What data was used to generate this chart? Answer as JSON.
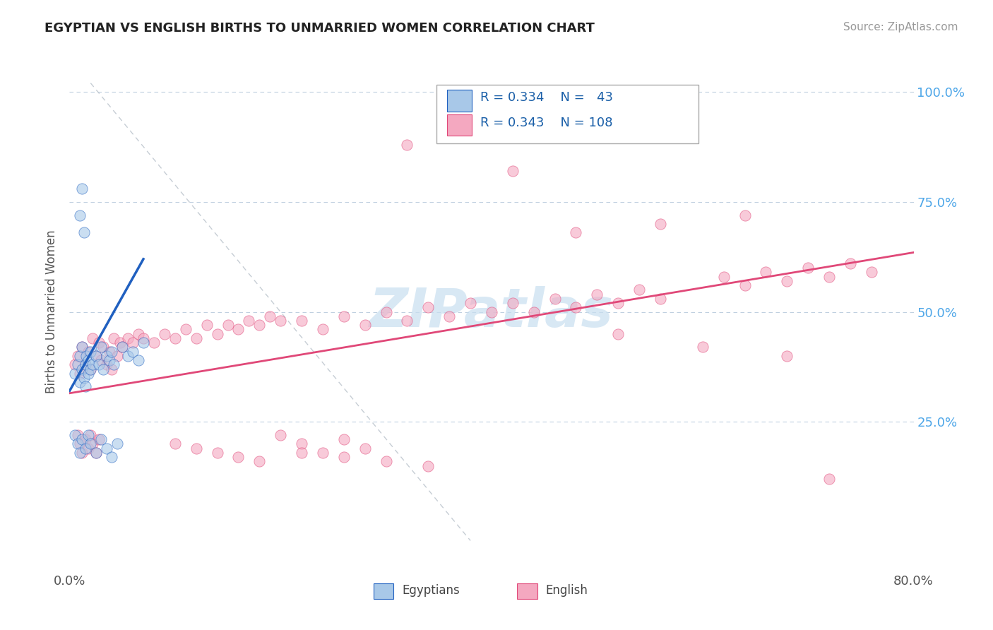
{
  "title": "EGYPTIAN VS ENGLISH BIRTHS TO UNMARRIED WOMEN CORRELATION CHART",
  "source": "Source: ZipAtlas.com",
  "ylabel": "Births to Unmarried Women",
  "xlim": [
    0.0,
    0.8
  ],
  "ylim": [
    -0.08,
    1.08
  ],
  "color_egyptian": "#a8c8e8",
  "color_english": "#f4a8c0",
  "color_line_egyptian": "#2060c0",
  "color_line_english": "#e04878",
  "color_grid": "#c0d0e0",
  "color_diag": "#c0c8d0",
  "watermark_color": "#c8dff0",
  "title_color": "#222222",
  "source_color": "#999999",
  "ylabel_color": "#555555",
  "tick_color": "#555555",
  "right_tick_color": "#4da6e8",
  "legend_text_color": "#1a5fa8"
}
